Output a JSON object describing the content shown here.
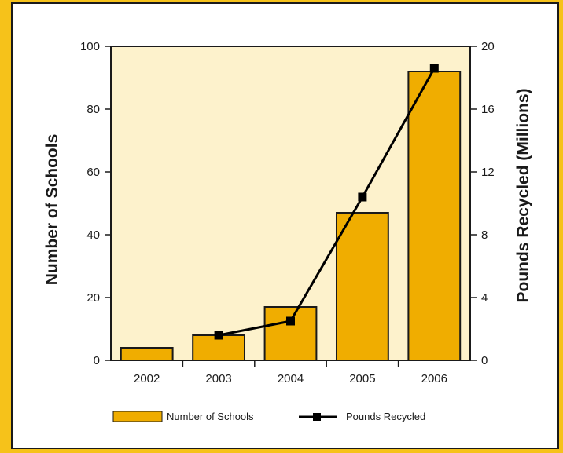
{
  "colors": {
    "page_background": "#f6c21a",
    "plot_background": "#fdf2cc",
    "bar_fill": "#f0ad00",
    "line": "#000000"
  },
  "chart_data": {
    "type": "bar",
    "categories": [
      "2002",
      "2003",
      "2004",
      "2005",
      "2006"
    ],
    "series": [
      {
        "name": "Number of Schools",
        "type": "bar",
        "axis": "left",
        "values": [
          4,
          8,
          17,
          47,
          92
        ]
      },
      {
        "name": "Pounds Recycled",
        "type": "line",
        "axis": "right",
        "values": [
          null,
          1.6,
          2.5,
          10.4,
          18.6
        ]
      }
    ],
    "y_left": {
      "label": "Number of Schools",
      "lim": [
        0,
        100
      ],
      "ticks": [
        0,
        20,
        40,
        60,
        80,
        100
      ]
    },
    "y_right": {
      "label": "Pounds Recycled (Millions)",
      "lim": [
        0,
        20
      ],
      "ticks": [
        0,
        4,
        8,
        12,
        16,
        20
      ]
    },
    "grid": false,
    "legend": {
      "placement": "bottom",
      "items": [
        "Number of Schools",
        "Pounds Recycled"
      ]
    }
  }
}
